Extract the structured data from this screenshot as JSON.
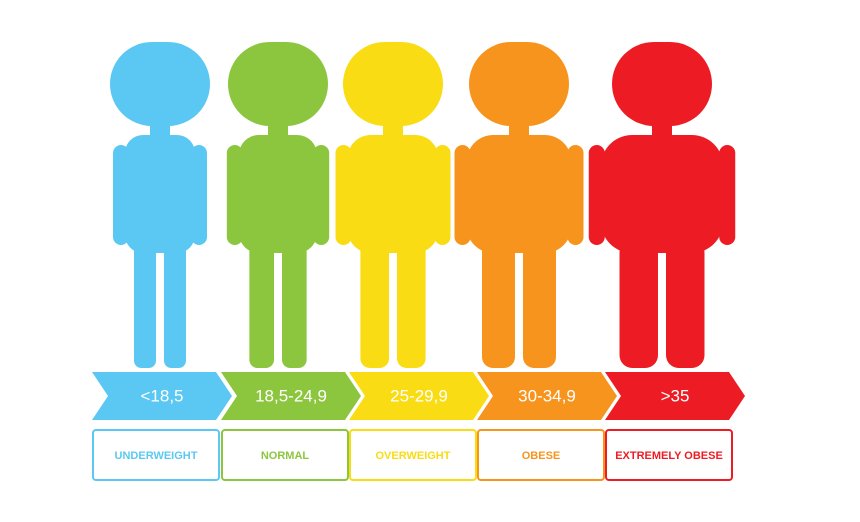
{
  "categories": [
    {
      "range": "<18,5",
      "label": "UNDERWEIGHT",
      "color": "#5bc8f3"
    },
    {
      "range": "18,5-24,9",
      "label": "NORMAL",
      "color": "#8cc63f"
    },
    {
      "range": "25-29,9",
      "label": "OVERWEIGHT",
      "color": "#f9dc14"
    },
    {
      "range": "30-34,9",
      "label": "OBESE",
      "color": "#f7941d"
    },
    {
      "range": ">35",
      "label": "EXTREMELY OBESE",
      "color": "#ed1c24"
    }
  ]
}
